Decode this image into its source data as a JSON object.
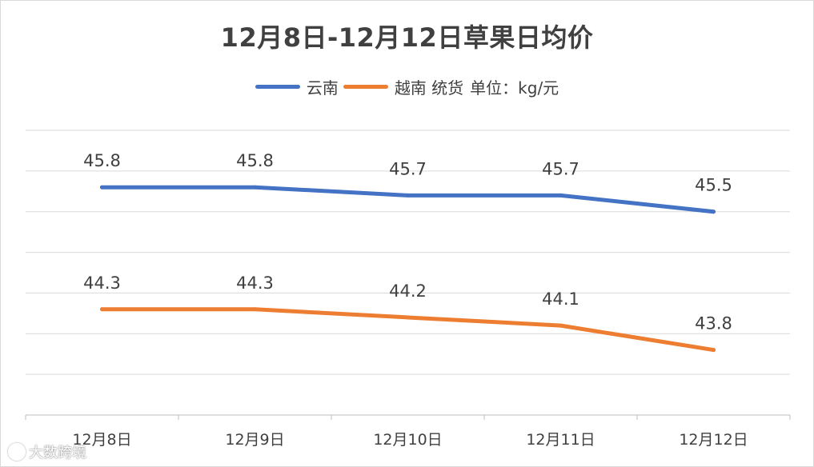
{
  "chart_data": {
    "type": "line",
    "title": "12月8日-12月12日草果日均价",
    "categories": [
      "12月8日",
      "12月9日",
      "12月10日",
      "12月11日",
      "12月12日"
    ],
    "series": [
      {
        "name": "云南",
        "color": "#4472c4",
        "values": [
          45.8,
          45.8,
          45.7,
          45.7,
          45.5
        ]
      },
      {
        "name": "越南 统货",
        "color": "#ed7d31",
        "values": [
          44.3,
          44.3,
          44.2,
          44.1,
          43.8
        ]
      }
    ],
    "unit_note": "单位：kg/元",
    "ylim": [
      43.0,
      46.5
    ],
    "grid": true,
    "legend": "top"
  },
  "watermark": {
    "text": "大数跨境"
  }
}
